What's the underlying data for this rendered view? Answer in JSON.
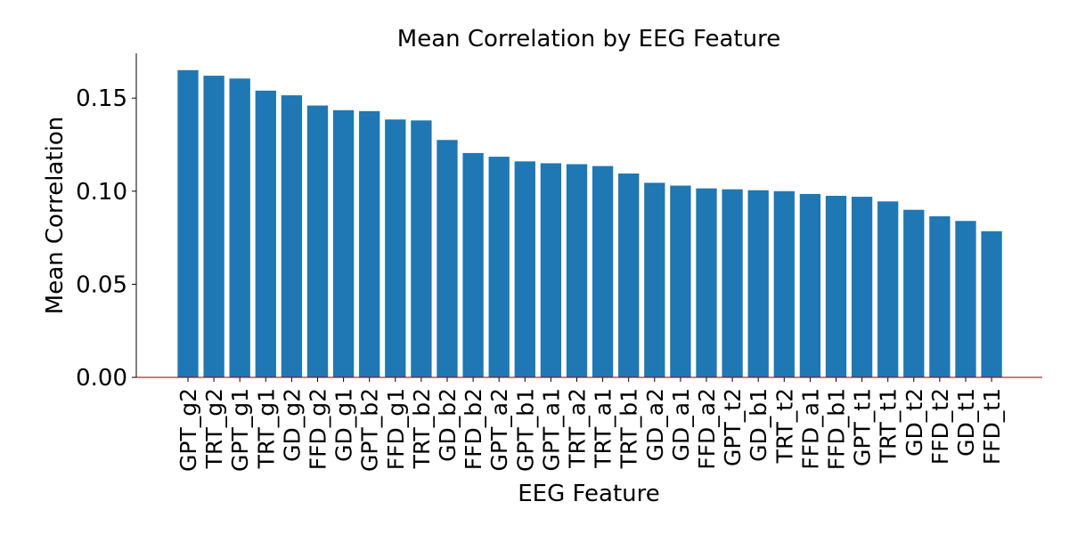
{
  "chart_data": {
    "type": "bar",
    "title": "Mean Correlation by EEG Feature",
    "xlabel": "EEG Feature",
    "ylabel": "Mean Correlation",
    "ylim": [
      0,
      0.174
    ],
    "yticks": [
      0.0,
      0.05,
      0.1,
      0.15
    ],
    "ytick_labels": [
      "0.00",
      "0.05",
      "0.10",
      "0.15"
    ],
    "grid": false,
    "categories": [
      "GPT_g2",
      "TRT_g2",
      "GPT_g1",
      "TRT_g1",
      "GD_g2",
      "FFD_g2",
      "GD_g1",
      "GPT_b2",
      "FFD_g1",
      "TRT_b2",
      "GD_b2",
      "FFD_b2",
      "GPT_a2",
      "GPT_b1",
      "GPT_a1",
      "TRT_a2",
      "TRT_a1",
      "TRT_b1",
      "GD_a2",
      "GD_a1",
      "FFD_a2",
      "GPT_t2",
      "GD_b1",
      "TRT_t2",
      "FFD_a1",
      "FFD_b1",
      "GPT_t1",
      "TRT_t1",
      "GD_t2",
      "FFD_t2",
      "GD_t1",
      "FFD_t1"
    ],
    "values": [
      0.165,
      0.162,
      0.1605,
      0.154,
      0.1515,
      0.146,
      0.1435,
      0.143,
      0.1385,
      0.138,
      0.1275,
      0.1205,
      0.1185,
      0.116,
      0.115,
      0.1145,
      0.1135,
      0.1095,
      0.1045,
      0.103,
      0.1015,
      0.101,
      0.1005,
      0.1,
      0.0985,
      0.0975,
      0.097,
      0.0945,
      0.09,
      0.0865,
      0.084,
      0.0785
    ],
    "colors": {
      "bar": "#1f77b4",
      "axis": "#000000",
      "zero_line": "#8b0000"
    }
  }
}
